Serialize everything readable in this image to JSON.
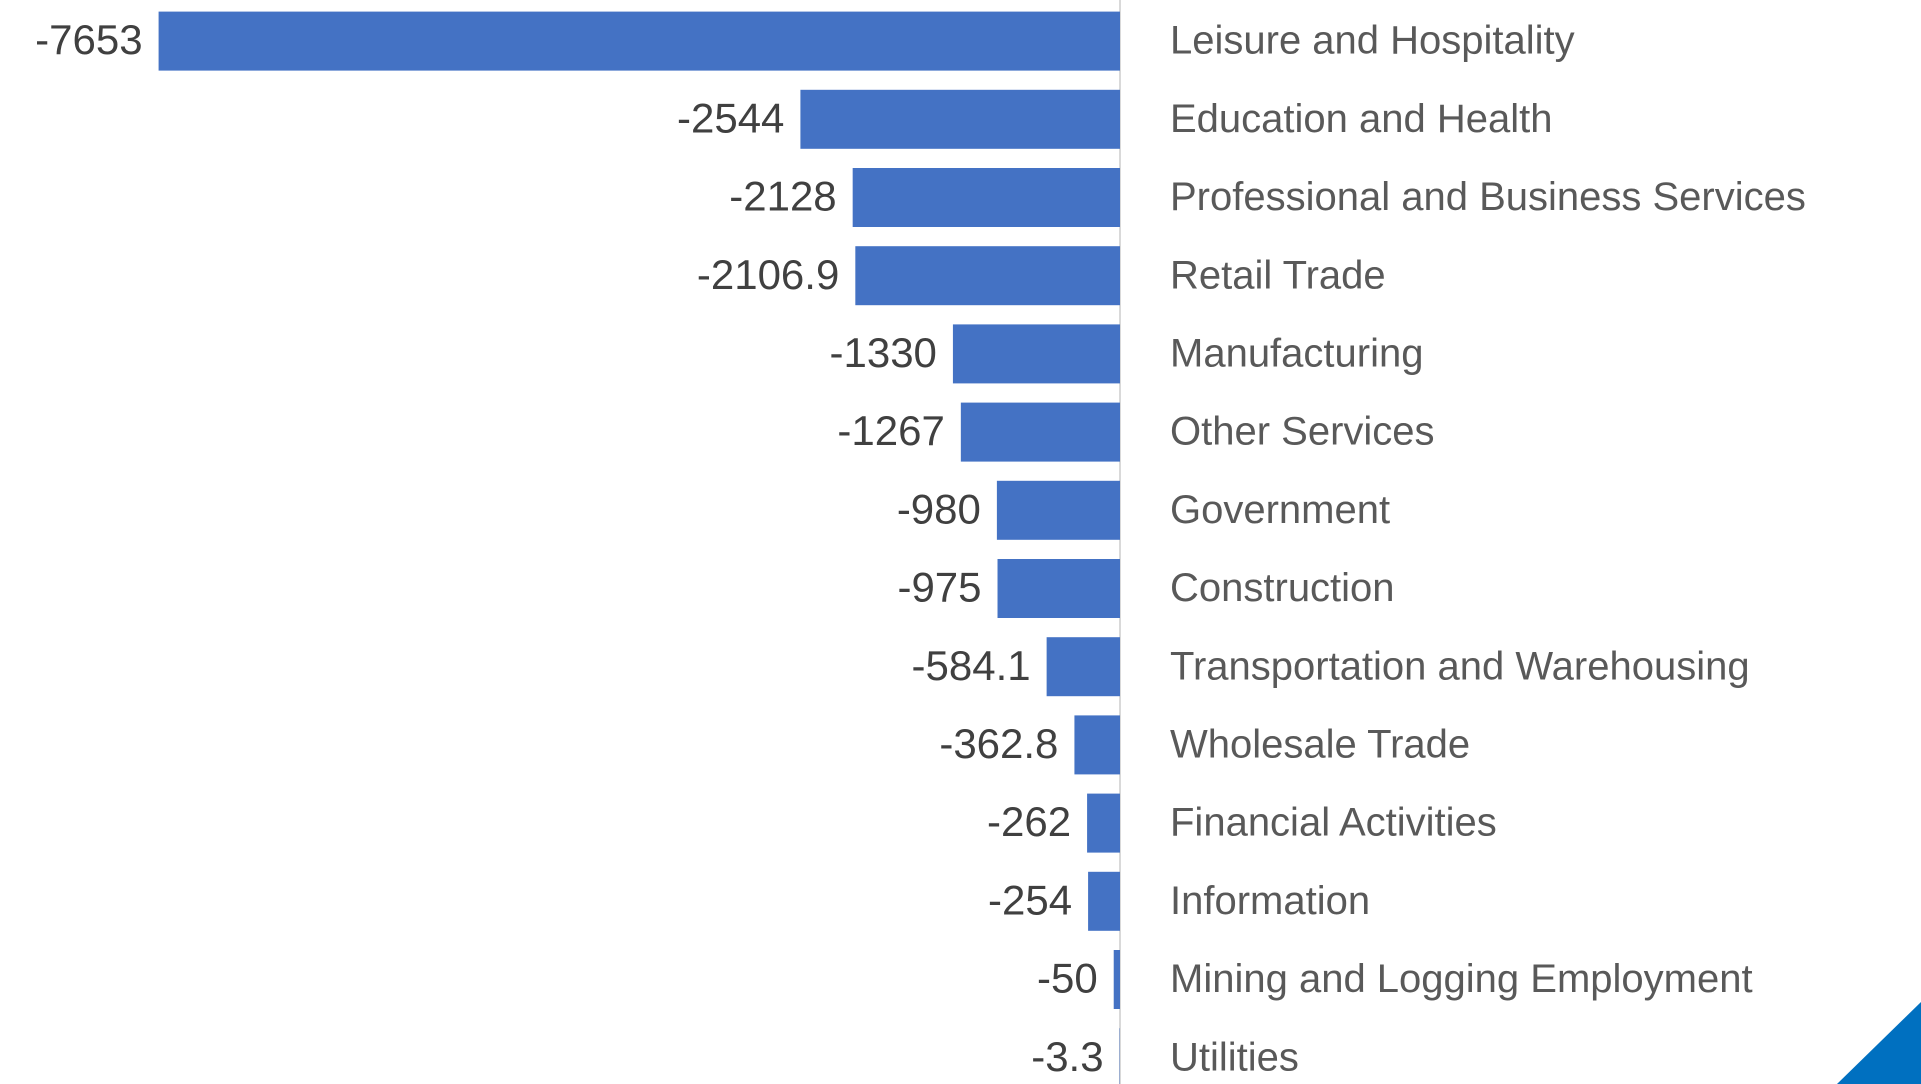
{
  "chart_data": {
    "type": "barh",
    "categories": [
      "Leisure and Hospitality",
      "Education and Health",
      "Professional and Business Services",
      "Retail Trade",
      "Manufacturing",
      "Other Services",
      "Government",
      "Construction",
      "Transportation and Warehousing",
      "Wholesale Trade",
      "Financial Activities",
      "Information",
      "Mining and Logging Employment",
      "Utilities"
    ],
    "values": [
      -7653,
      -2544,
      -2128,
      -2106.9,
      -1330,
      -1267,
      -980,
      -975,
      -584.1,
      -362.8,
      -262,
      -254,
      -50,
      -3.3
    ],
    "color": "#4472c4",
    "xlim": [
      -8000,
      0
    ]
  }
}
